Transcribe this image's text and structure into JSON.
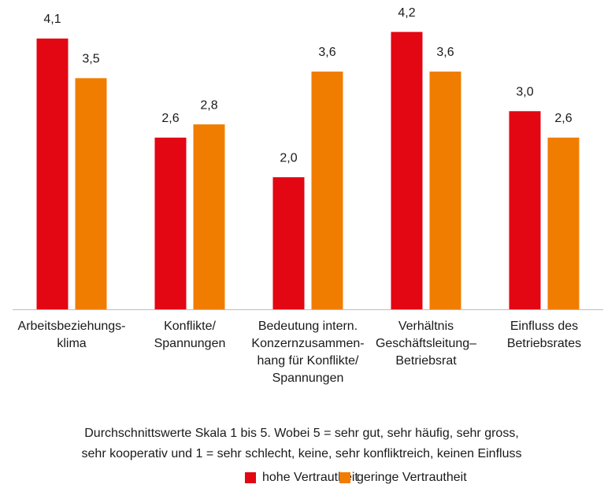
{
  "chart_data": {
    "type": "bar",
    "categories": [
      [
        "Arbeitsbeziehungs-",
        "klima"
      ],
      [
        "Konflikte/",
        "Spannungen"
      ],
      [
        "Bedeutung intern.",
        "Konzernzusammen-",
        "hang für Konflikte/",
        "Spannungen"
      ],
      [
        "Verhältnis",
        "Geschäftsleitung–",
        "Betriebsrat"
      ],
      [
        "Einfluss des",
        "Betriebsrates"
      ]
    ],
    "series": [
      {
        "name": "hohe Vertrautheit",
        "color": "#e30613",
        "values": [
          4.1,
          2.6,
          2.0,
          4.2,
          3.0
        ],
        "value_labels": [
          "4,1",
          "2,6",
          "2,0",
          "4,2",
          "3,0"
        ]
      },
      {
        "name": "geringe Vertrautheit",
        "color": "#f07d00",
        "values": [
          3.5,
          2.8,
          3.6,
          3.6,
          2.6
        ],
        "value_labels": [
          "3,5",
          "2,8",
          "3,6",
          "3,6",
          "2,6"
        ]
      }
    ],
    "ylim": [
      0,
      4.6
    ],
    "note": [
      "Durchschnittswerte Skala 1 bis 5. Wobei 5 = sehr gut, sehr häufig, sehr gross,",
      "sehr kooperativ und 1 = sehr schlecht, keine, sehr konfliktreich, keinen Einfluss"
    ],
    "legend": "bottom"
  }
}
